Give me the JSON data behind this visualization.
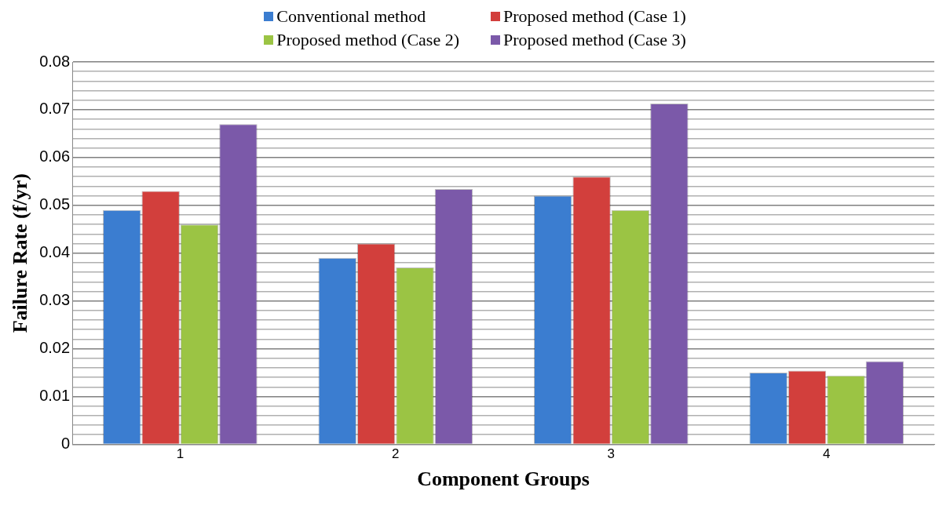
{
  "chart_data": {
    "type": "bar",
    "xlabel": "Component Groups",
    "ylabel": "Failure Rate (f/yr)",
    "categories": [
      "1",
      "2",
      "3",
      "4"
    ],
    "series": [
      {
        "name": "Conventional method",
        "color": "#3b7dd0",
        "values": [
          0.049,
          0.039,
          0.052,
          0.015
        ]
      },
      {
        "name": "Proposed method (Case 1)",
        "color": "#d23f3c",
        "values": [
          0.053,
          0.042,
          0.056,
          0.0154
        ]
      },
      {
        "name": "Proposed method (Case 2)",
        "color": "#9bc444",
        "values": [
          0.046,
          0.037,
          0.049,
          0.0144
        ]
      },
      {
        "name": "Proposed method (Case 3)",
        "color": "#7b59a9",
        "values": [
          0.067,
          0.0534,
          0.0713,
          0.0174
        ]
      }
    ],
    "ylim": [
      0,
      0.08
    ],
    "yticks": [
      0,
      {
        "value": 0.002,
        "label": null
      },
      {
        "value": 0.004,
        "label": null
      },
      {
        "value": 0.006,
        "label": null
      },
      {
        "value": 0.008,
        "label": null
      },
      0.01,
      {
        "value": 0.012,
        "label": null
      },
      {
        "value": 0.014,
        "label": null
      },
      {
        "value": 0.016,
        "label": null
      },
      {
        "value": 0.018,
        "label": null
      },
      0.02,
      {
        "value": 0.022,
        "label": null
      },
      {
        "value": 0.024,
        "label": null
      },
      {
        "value": 0.026,
        "label": null
      },
      {
        "value": 0.028,
        "label": null
      },
      0.03,
      {
        "value": 0.032,
        "label": null
      },
      {
        "value": 0.034,
        "label": null
      },
      {
        "value": 0.036,
        "label": null
      },
      {
        "value": 0.038,
        "label": null
      },
      0.04,
      {
        "value": 0.042,
        "label": null
      },
      {
        "value": 0.044,
        "label": null
      },
      {
        "value": 0.046,
        "label": null
      },
      {
        "value": 0.048,
        "label": null
      },
      0.05,
      {
        "value": 0.052,
        "label": null
      },
      {
        "value": 0.054,
        "label": null
      },
      {
        "value": 0.056,
        "label": null
      },
      {
        "value": 0.058,
        "label": null
      },
      0.06,
      {
        "value": 0.062,
        "label": null
      },
      {
        "value": 0.064,
        "label": null
      },
      {
        "value": 0.066,
        "label": null
      },
      {
        "value": 0.068,
        "label": null
      },
      0.07,
      {
        "value": 0.072,
        "label": null
      },
      {
        "value": 0.074,
        "label": null
      },
      {
        "value": 0.076,
        "label": null
      },
      {
        "value": 0.078,
        "label": null
      },
      0.08
    ],
    "grid": "y",
    "legend": "top"
  }
}
